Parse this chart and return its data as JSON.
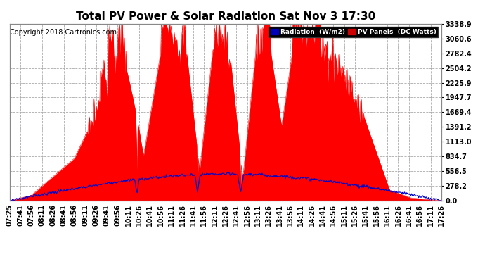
{
  "title": "Total PV Power & Solar Radiation Sat Nov 3 17:30",
  "copyright": "Copyright 2018 Cartronics.com",
  "yticks": [
    0.0,
    278.2,
    556.5,
    834.7,
    1113.0,
    1391.2,
    1669.4,
    1947.7,
    2225.9,
    2504.2,
    2782.4,
    3060.6,
    3338.9
  ],
  "ymax": 3338.9,
  "pv_color": "#ff0000",
  "radiation_color": "#0000cc",
  "background_color": "#ffffff",
  "legend_radiation_bg": "#0000bb",
  "legend_pv_bg": "#cc0000",
  "title_fontsize": 11,
  "copyright_fontsize": 7,
  "tick_fontsize": 7,
  "grid_color": "#aaaaaa",
  "grid_linestyle": "--",
  "n_points": 610,
  "xtick_labels": [
    "07:25",
    "07:41",
    "07:56",
    "08:11",
    "08:26",
    "08:41",
    "08:56",
    "09:11",
    "09:26",
    "09:41",
    "09:56",
    "10:11",
    "10:26",
    "10:41",
    "10:56",
    "11:11",
    "11:26",
    "11:41",
    "11:56",
    "12:11",
    "12:26",
    "12:41",
    "12:56",
    "13:11",
    "13:26",
    "13:41",
    "13:56",
    "14:11",
    "14:26",
    "14:41",
    "14:56",
    "15:11",
    "15:26",
    "15:41",
    "15:56",
    "16:11",
    "16:26",
    "16:41",
    "16:56",
    "17:11",
    "17:26"
  ]
}
